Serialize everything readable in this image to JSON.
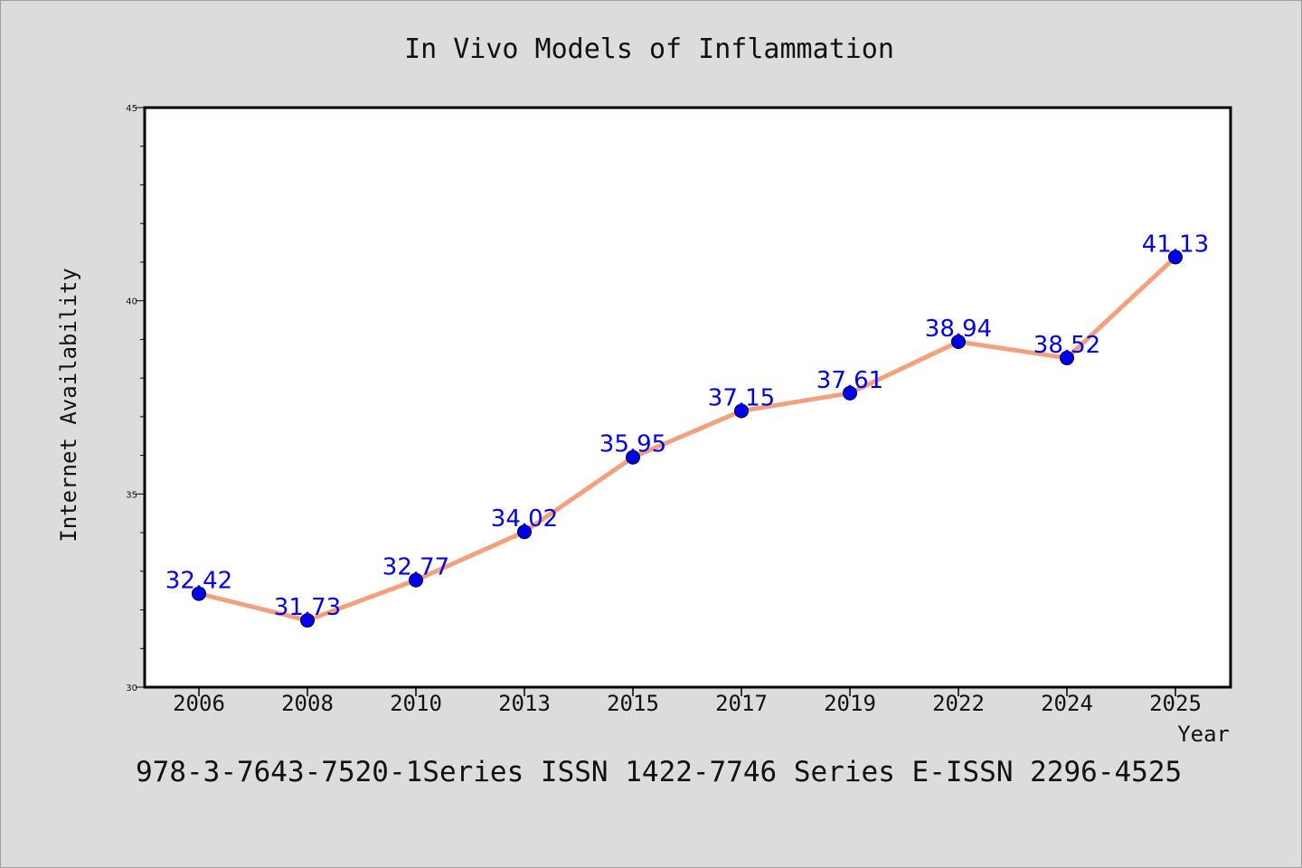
{
  "chart_data": {
    "type": "line",
    "title": "In Vivo Models of Inflammation",
    "xlabel": "Year",
    "ylabel": "Internet Availability",
    "categories": [
      "2006",
      "2008",
      "2010",
      "2013",
      "2015",
      "2017",
      "2019",
      "2022",
      "2024",
      "2025"
    ],
    "series": [
      {
        "values": [
          32.42,
          31.73,
          32.77,
          34.02,
          35.95,
          37.15,
          37.61,
          38.94,
          38.52,
          41.13
        ],
        "data_labels": [
          "32.42",
          "31.73",
          "32.77",
          "34.02",
          "35.95",
          "37.15",
          "37.61",
          "38.94",
          "38.52",
          "41.13"
        ],
        "line_color": "#f4a07c",
        "marker_color": "#0000ee",
        "label_color": "#0000ee"
      }
    ],
    "ylim": [
      30,
      45
    ],
    "yticks": [
      "30",
      "35",
      "40",
      "45"
    ],
    "grid": false,
    "legend": "none"
  },
  "footer": {
    "text": "978-3-7643-7520-1Series ISSN 1422-7746 Series E-ISSN 2296-4525"
  }
}
